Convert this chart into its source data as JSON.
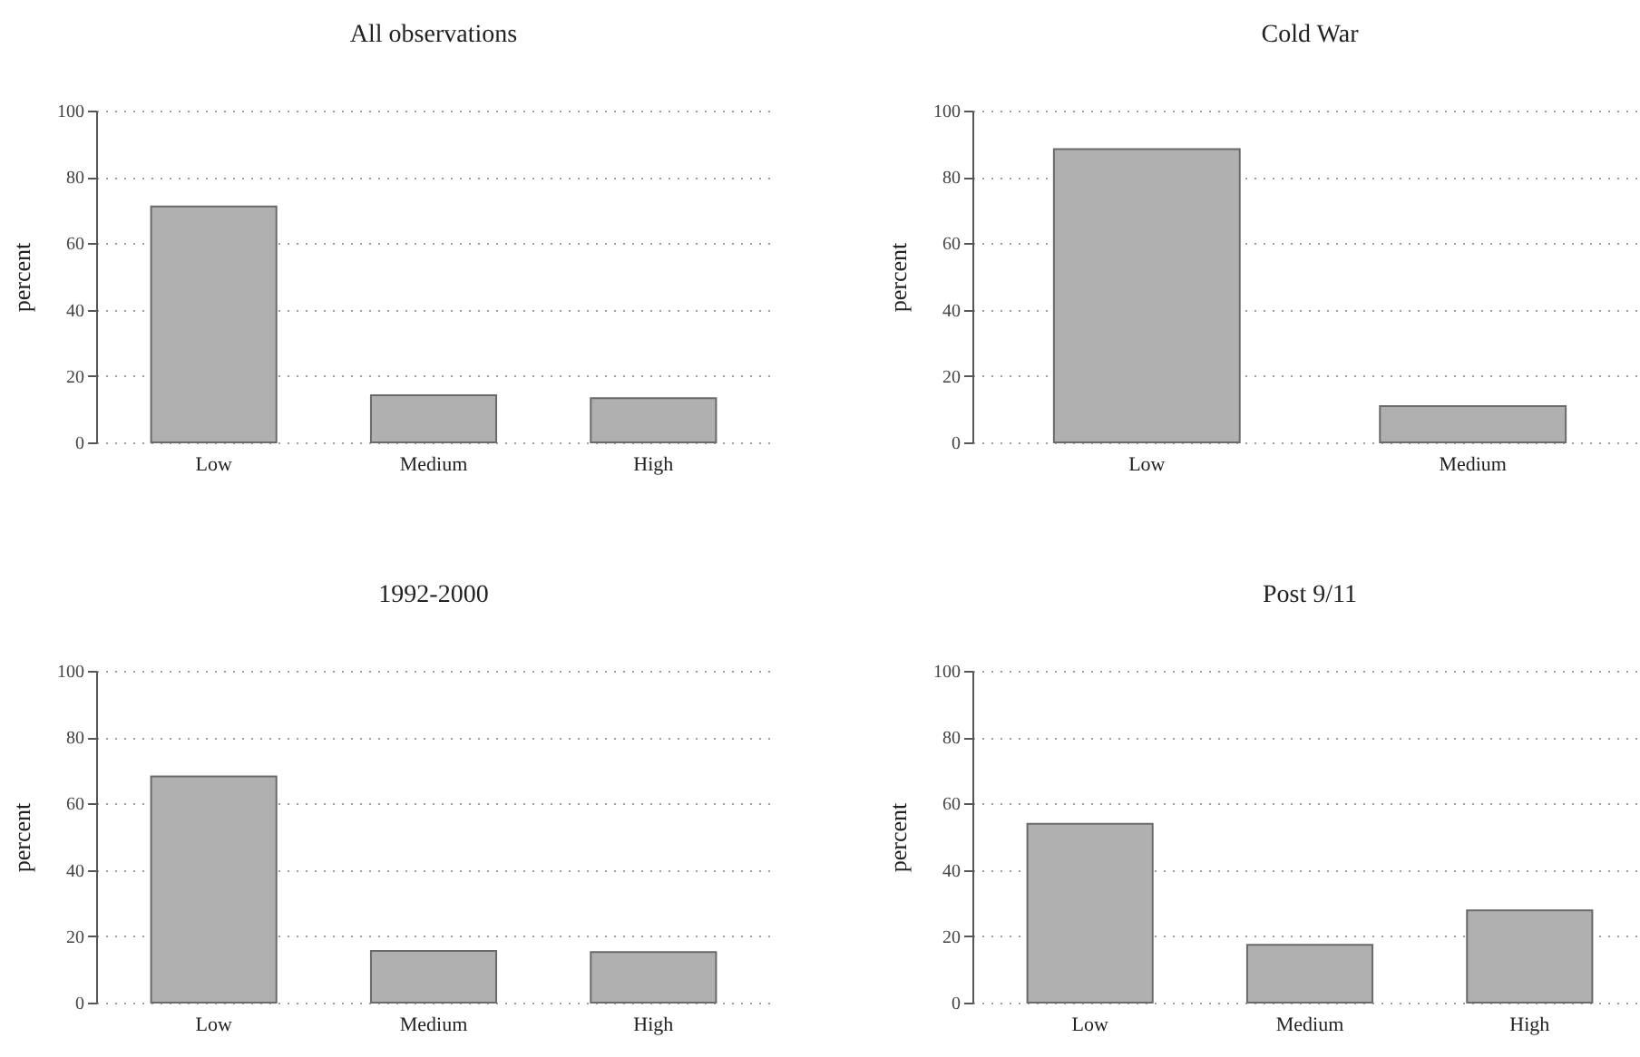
{
  "chart_data": [
    {
      "type": "bar",
      "title": "All observations",
      "ylabel": "percent",
      "categories": [
        "Low",
        "Medium",
        "High"
      ],
      "values": [
        71.1,
        14.2,
        13.3
      ],
      "color": "#b0b0b0",
      "ylim": [
        0,
        100
      ],
      "yticks": [
        0,
        20,
        40,
        60,
        80,
        100
      ],
      "grid": "y"
    },
    {
      "type": "bar",
      "title": "Cold War",
      "ylabel": "percent",
      "categories": [
        "Low",
        "Medium"
      ],
      "values": [
        88.4,
        10.9
      ],
      "color": "#b0b0b0",
      "ylim": [
        0,
        100
      ],
      "yticks": [
        0,
        20,
        40,
        60,
        80,
        100
      ],
      "grid": "y"
    },
    {
      "type": "bar",
      "title": "1992-2000",
      "ylabel": "percent",
      "categories": [
        "Low",
        "Medium",
        "High"
      ],
      "values": [
        68.2,
        15.6,
        15.2
      ],
      "color": "#b0b0b0",
      "ylim": [
        0,
        100
      ],
      "yticks": [
        0,
        20,
        40,
        60,
        80,
        100
      ],
      "grid": "y"
    },
    {
      "type": "bar",
      "title": "Post 9/11",
      "ylabel": "percent",
      "categories": [
        "Low",
        "Medium",
        "High"
      ],
      "values": [
        53.9,
        17.4,
        27.8
      ],
      "color": "#b0b0b0",
      "ylim": [
        0,
        100
      ],
      "yticks": [
        0,
        20,
        40,
        60,
        80,
        100
      ],
      "grid": "y"
    }
  ]
}
